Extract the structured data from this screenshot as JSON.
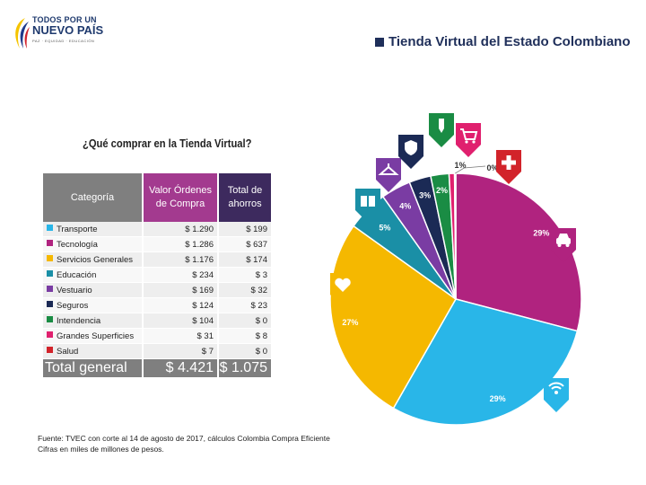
{
  "header": {
    "logo_line1": "TODOS POR UN",
    "logo_line2": "NUEVO PAÍS",
    "logo_line3": "PAZ · EQUIDAD · EDUCACIÓN",
    "title": "Tienda Virtual del Estado Colombiano"
  },
  "question": "¿Qué comprar en la Tienda Virtual?",
  "table": {
    "headers": [
      "Categoría",
      "Valor Órdenes de Compra",
      "Total de ahorros"
    ],
    "rows": [
      {
        "name": "Transporte",
        "color": "#29b6e8",
        "orders": "$ 1.290",
        "savings": "$ 199"
      },
      {
        "name": "Tecnología",
        "color": "#b0237f",
        "orders": "$ 1.286",
        "savings": "$ 637"
      },
      {
        "name": "Servicios Generales",
        "color": "#f5b800",
        "orders": "$ 1.176",
        "savings": "$ 174"
      },
      {
        "name": "Educación",
        "color": "#1a8fa6",
        "orders": "$ 234",
        "savings": "$ 3"
      },
      {
        "name": "Vestuario",
        "color": "#7a3ca3",
        "orders": "$ 169",
        "savings": "$ 32"
      },
      {
        "name": "Seguros",
        "color": "#1b2a55",
        "orders": "$ 124",
        "savings": "$ 23"
      },
      {
        "name": "Intendencia",
        "color": "#1a8c44",
        "orders": "$ 104",
        "savings": "$ 0"
      },
      {
        "name": "Grandes Superficies",
        "color": "#e0206e",
        "orders": "$ 31",
        "savings": "$ 8"
      },
      {
        "name": "Salud",
        "color": "#d2232a",
        "orders": "$ 7",
        "savings": "$ 0"
      }
    ],
    "total": {
      "name": "Total general",
      "orders": "$ 4.421",
      "savings": "$ 1.075"
    }
  },
  "source": {
    "line1": "Fuente: TVEC con corte al 14 de agosto de 2017, cálculos Colombia Compra Eficiente",
    "line2": "Cifras en miles de millones de pesos."
  },
  "chart_data": {
    "type": "pie",
    "title": "",
    "categories": [
      "Tecnología",
      "Transporte",
      "Servicios Generales",
      "Educación",
      "Vestuario",
      "Seguros",
      "Intendencia",
      "Grandes Superficies",
      "Salud"
    ],
    "values": [
      1286,
      1290,
      1176,
      234,
      169,
      124,
      104,
      31,
      7
    ],
    "labels": [
      "29%",
      "29%",
      "27%",
      "5%",
      "4%",
      "3%",
      "2%",
      "1%",
      "0%"
    ],
    "colors": [
      "#b0237f",
      "#29b6e8",
      "#f5b800",
      "#1a8fa6",
      "#7a3ca3",
      "#1b2a55",
      "#1a8c44",
      "#e0206e",
      "#d2232a"
    ],
    "icons": [
      "car-icon",
      "wifi-icon",
      "service-icon",
      "education-icon",
      "hanger-icon",
      "shield-icon",
      "pen-icon",
      "cart-icon",
      "health-icon"
    ]
  }
}
